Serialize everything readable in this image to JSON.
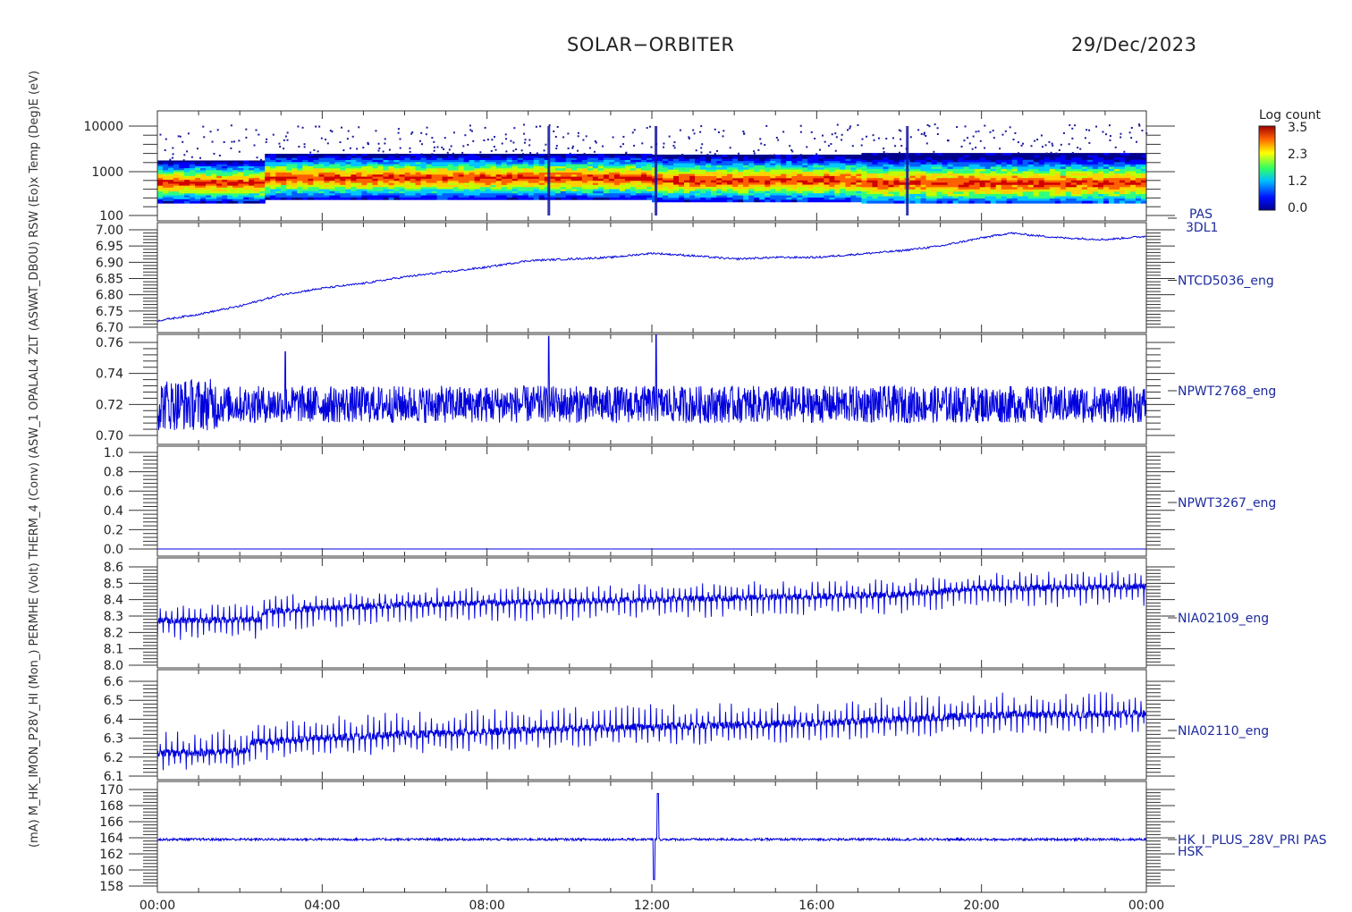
{
  "header": {
    "mission": "SOLAR−ORBITER",
    "date": "29/Dec/2023"
  },
  "colors": {
    "trace": "#0000dd",
    "axis": "#333333",
    "panel_label": "#1c2a9e"
  },
  "colorbar": {
    "title": "Log count",
    "ticks": [
      "3.5",
      "2.3",
      "1.2",
      "0.0"
    ],
    "min": 0.0,
    "max": 3.5
  },
  "x_axis": {
    "tick_labels": [
      "00:00",
      "04:00",
      "08:00",
      "12:00",
      "16:00",
      "20:00",
      "00:00"
    ],
    "range_hours": [
      0,
      24
    ]
  },
  "left_axis_title_overlap": "(mA)   M_HK_IMON_P28V_HI (Mon_) PERMHE (Volt) THERM_4 (Conv) (ASW_1 OPALAL4 ZLT (ASWAT_DBOU) RSW (Eo)x Temp (Deg)E (eV)",
  "chart_data": [
    {
      "type": "heatmap",
      "panel_label": "PAS",
      "panel_sublabel": "3DL1",
      "y_scale": "log",
      "ylim": [
        100,
        20000
      ],
      "y_tick_labels": [
        "10000",
        "1000",
        "100"
      ],
      "bands": [
        {
          "x_range": [
            0.0,
            2.5
          ],
          "core_ev": 560,
          "width_ev_low": 300,
          "width_ev_high": 1700
        },
        {
          "x_range": [
            2.5,
            12.0
          ],
          "core_ev": 720,
          "width_ev_low": 360,
          "width_ev_high": 2400
        },
        {
          "x_range": [
            12.0,
            17.0
          ],
          "core_ev": 640,
          "width_ev_low": 320,
          "width_ev_high": 2300
        },
        {
          "x_range": [
            17.0,
            24.0
          ],
          "core_ev": 560,
          "width_ev_low": 300,
          "width_ev_high": 2500
        }
      ],
      "vertical_spikes_hours": [
        9.5,
        12.1,
        18.2
      ]
    },
    {
      "type": "line",
      "panel_label": "NTCD5036_eng",
      "ylim": [
        6.7,
        7.0
      ],
      "y_tick_labels": [
        "7.00",
        "6.95",
        "6.90",
        "6.85",
        "6.80",
        "6.75",
        "6.70"
      ],
      "x": [
        0,
        1,
        2,
        3,
        4,
        5,
        6,
        7,
        8,
        9,
        10,
        11,
        12,
        13,
        14,
        15,
        16,
        17,
        18,
        19,
        20,
        20.7,
        21.5,
        22,
        23,
        24
      ],
      "values": [
        6.72,
        6.74,
        6.765,
        6.8,
        6.82,
        6.835,
        6.855,
        6.87,
        6.885,
        6.905,
        6.91,
        6.915,
        6.928,
        6.92,
        6.91,
        6.915,
        6.915,
        6.925,
        6.935,
        6.95,
        6.975,
        6.99,
        6.98,
        6.975,
        6.97,
        6.98
      ],
      "noise": 0.003
    },
    {
      "type": "line",
      "panel_label": "NPWT2768_eng",
      "ylim": [
        0.68,
        0.77
      ],
      "y_tick_labels": [
        "0.76",
        "0.74",
        "0.72",
        "0.70"
      ],
      "baseline": 0.72,
      "noise": 0.012,
      "spikes": [
        {
          "x": 9.5,
          "y": 0.764
        },
        {
          "x": 12.1,
          "y": 0.766
        },
        {
          "x": 3.1,
          "y": 0.754
        }
      ]
    },
    {
      "type": "line",
      "panel_label": "NPWT3267_eng",
      "ylim": [
        -0.05,
        1.0
      ],
      "y_tick_labels": [
        "1.0",
        "0.8",
        "0.6",
        "0.4",
        "0.2",
        "0.0"
      ],
      "baseline": 0.0,
      "noise": 0.0
    },
    {
      "type": "line",
      "panel_label": "NIA02109_eng",
      "ylim": [
        8.0,
        8.62
      ],
      "y_tick_labels": [
        "8.6",
        "8.5",
        "8.4",
        "8.3",
        "8.2",
        "8.1",
        "8.0"
      ],
      "x": [
        0,
        2.5,
        2.6,
        6,
        12,
        18,
        20,
        24
      ],
      "values": [
        8.27,
        8.28,
        8.33,
        8.37,
        8.4,
        8.43,
        8.47,
        8.48
      ],
      "dip": 0.12,
      "peak": 0.1
    },
    {
      "type": "line",
      "panel_label": "NIA02110_eng",
      "ylim": [
        6.02,
        6.67
      ],
      "y_tick_labels": [
        "6.6",
        "6.5",
        "6.4",
        "6.3",
        "6.2",
        "6.1"
      ],
      "x": [
        0,
        2.2,
        2.3,
        5,
        10,
        16,
        20,
        24
      ],
      "values": [
        6.22,
        6.23,
        6.28,
        6.31,
        6.35,
        6.38,
        6.42,
        6.43
      ],
      "dip": 0.1,
      "peak": 0.12
    },
    {
      "type": "line",
      "panel_label": "HK_I_PLUS_28V_PRI PAS",
      "panel_sublabel": "HSK",
      "ylim": [
        157.5,
        170.5
      ],
      "y_tick_labels": [
        "170",
        "168",
        "166",
        "164",
        "162",
        "160",
        "158"
      ],
      "baseline": 163.8,
      "noise": 0.15,
      "spikes": [
        {
          "x": 12.05,
          "y": 158.8
        },
        {
          "x": 12.15,
          "y": 169.5
        }
      ]
    }
  ]
}
